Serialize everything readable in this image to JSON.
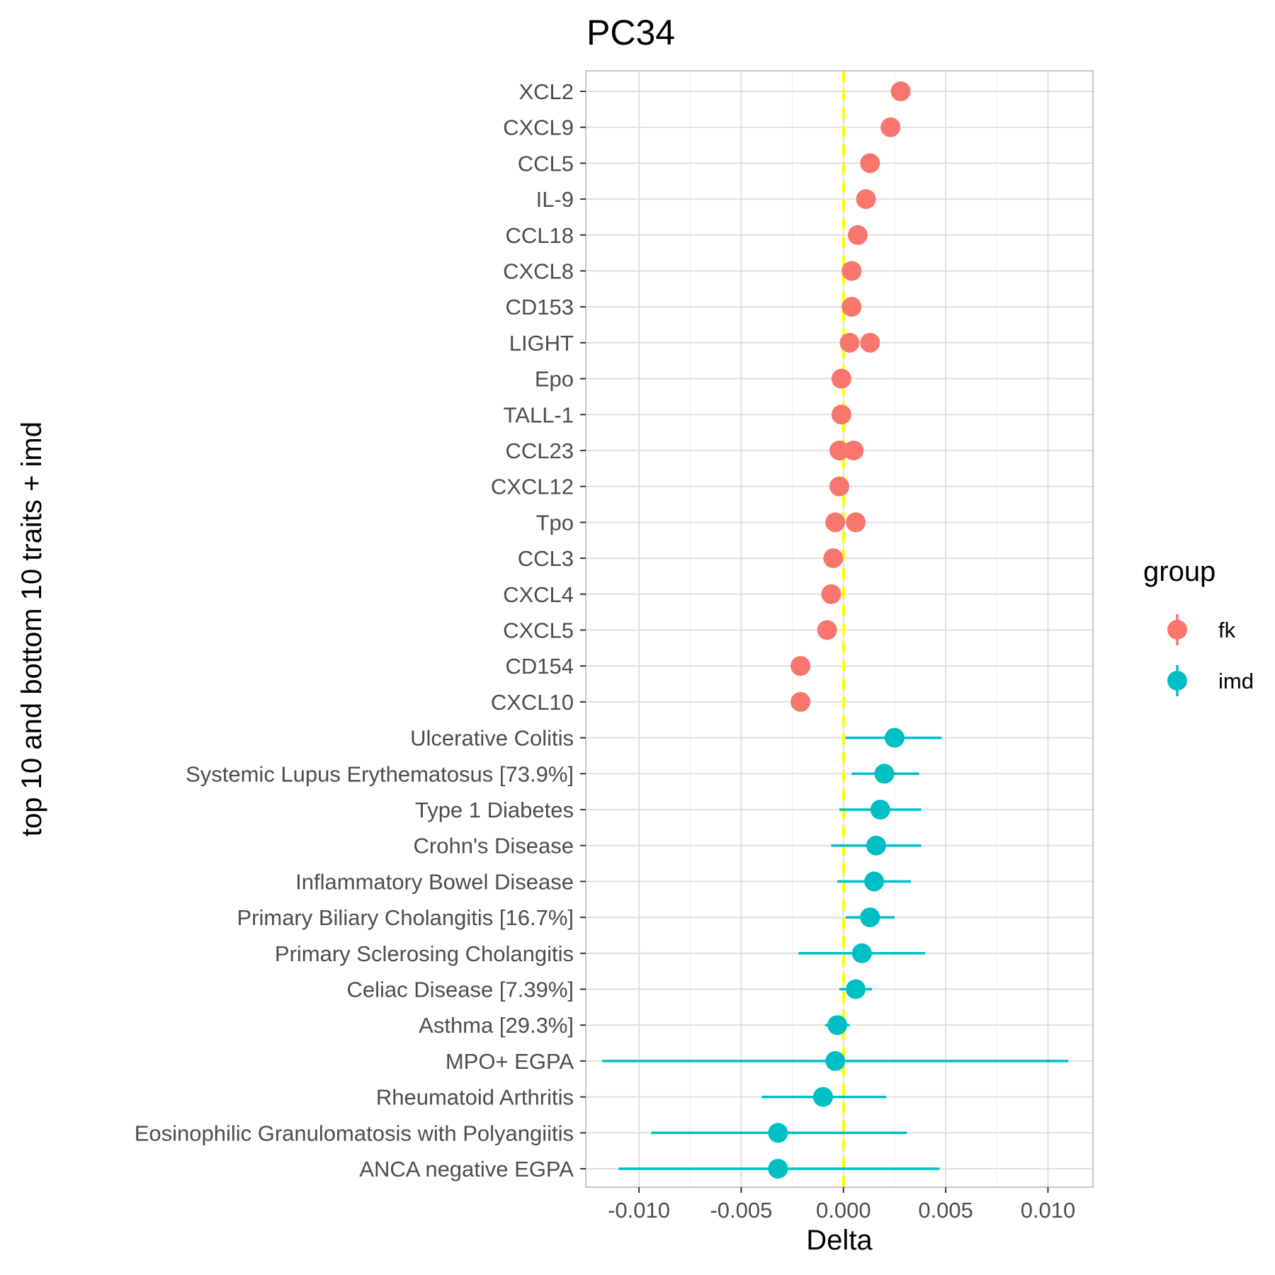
{
  "chart_data": {
    "type": "scatter",
    "title": "PC34",
    "xlabel": "Delta",
    "ylabel": "top 10 and bottom 10 traits + imd",
    "xlim": [
      -0.0126,
      0.0122
    ],
    "xticks": [
      "-0.010",
      "-0.005",
      "0.000",
      "0.005",
      "0.010"
    ],
    "xtick_values": [
      -0.01,
      -0.005,
      0.0,
      0.005,
      0.01
    ],
    "reference_line": {
      "x": 0.0,
      "color": "#FFFF00",
      "style": "dashed"
    },
    "grid": true,
    "legend": {
      "title": "group",
      "position": "right"
    },
    "categories": [
      "XCL2",
      "CXCL9",
      "CCL5",
      "IL-9",
      "CCL18",
      "CXCL8",
      "CD153",
      "LIGHT",
      "Epo",
      "TALL-1",
      "CCL23",
      "CXCL12",
      "Tpo",
      "CCL3",
      "CXCL4",
      "CXCL5",
      "CD154",
      "CXCL10",
      "Ulcerative Colitis",
      "Systemic Lupus Erythematosus [73.9%]",
      "Type 1 Diabetes",
      "Crohn's Disease",
      "Inflammatory Bowel Disease",
      "Primary Biliary Cholangitis [16.7%]",
      "Primary Sclerosing Cholangitis",
      "Celiac Disease [7.39%]",
      "Asthma [29.3%]",
      "MPO+ EGPA",
      "Rheumatoid Arthritis",
      "Eosinophilic Granulomatosis with Polyangiitis",
      "ANCA negative EGPA"
    ],
    "series": [
      {
        "name": "fk",
        "color": "#F8766D",
        "points": [
          {
            "category": "XCL2",
            "x": 0.0028
          },
          {
            "category": "CXCL9",
            "x": 0.0023
          },
          {
            "category": "CCL5",
            "x": 0.0013
          },
          {
            "category": "IL-9",
            "x": 0.0011
          },
          {
            "category": "CCL18",
            "x": 0.0007
          },
          {
            "category": "CXCL8",
            "x": 0.0004
          },
          {
            "category": "CD153",
            "x": 0.0004
          },
          {
            "category": "LIGHT",
            "x": 0.0003
          },
          {
            "category": "LIGHT",
            "x": 0.0013
          },
          {
            "category": "Epo",
            "x": -0.0001
          },
          {
            "category": "TALL-1",
            "x": -0.0001
          },
          {
            "category": "CCL23",
            "x": -0.0002
          },
          {
            "category": "CCL23",
            "x": 0.0005
          },
          {
            "category": "CXCL12",
            "x": -0.0002
          },
          {
            "category": "Tpo",
            "x": -0.0004
          },
          {
            "category": "Tpo",
            "x": 0.0006
          },
          {
            "category": "CCL3",
            "x": -0.0005
          },
          {
            "category": "CXCL4",
            "x": -0.0006
          },
          {
            "category": "CXCL5",
            "x": -0.0008
          },
          {
            "category": "CD154",
            "x": -0.0021
          },
          {
            "category": "CXCL10",
            "x": -0.0021
          }
        ]
      },
      {
        "name": "imd",
        "color": "#00BFC4",
        "points": [
          {
            "category": "Ulcerative Colitis",
            "x": 0.0025,
            "lo": 0.0001,
            "hi": 0.0048
          },
          {
            "category": "Systemic Lupus Erythematosus [73.9%]",
            "x": 0.002,
            "lo": 0.0004,
            "hi": 0.0037
          },
          {
            "category": "Type 1 Diabetes",
            "x": 0.0018,
            "lo": -0.0002,
            "hi": 0.0038
          },
          {
            "category": "Crohn's Disease",
            "x": 0.0016,
            "lo": -0.0006,
            "hi": 0.0038
          },
          {
            "category": "Inflammatory Bowel Disease",
            "x": 0.0015,
            "lo": -0.0003,
            "hi": 0.0033
          },
          {
            "category": "Primary Biliary Cholangitis [16.7%]",
            "x": 0.0013,
            "lo": 0.0001,
            "hi": 0.0025
          },
          {
            "category": "Primary Sclerosing Cholangitis",
            "x": 0.0009,
            "lo": -0.0022,
            "hi": 0.004
          },
          {
            "category": "Celiac Disease [7.39%]",
            "x": 0.0006,
            "lo": -0.0002,
            "hi": 0.0014
          },
          {
            "category": "Asthma [29.3%]",
            "x": -0.0003,
            "lo": -0.0009,
            "hi": 0.0003
          },
          {
            "category": "MPO+ EGPA",
            "x": -0.0004,
            "lo": -0.0118,
            "hi": 0.011
          },
          {
            "category": "Rheumatoid Arthritis",
            "x": -0.001,
            "lo": -0.004,
            "hi": 0.0021
          },
          {
            "category": "Eosinophilic Granulomatosis with Polyangiitis",
            "x": -0.0032,
            "lo": -0.0094,
            "hi": 0.0031
          },
          {
            "category": "ANCA negative EGPA",
            "x": -0.0032,
            "lo": -0.011,
            "hi": 0.0047
          }
        ]
      }
    ]
  }
}
